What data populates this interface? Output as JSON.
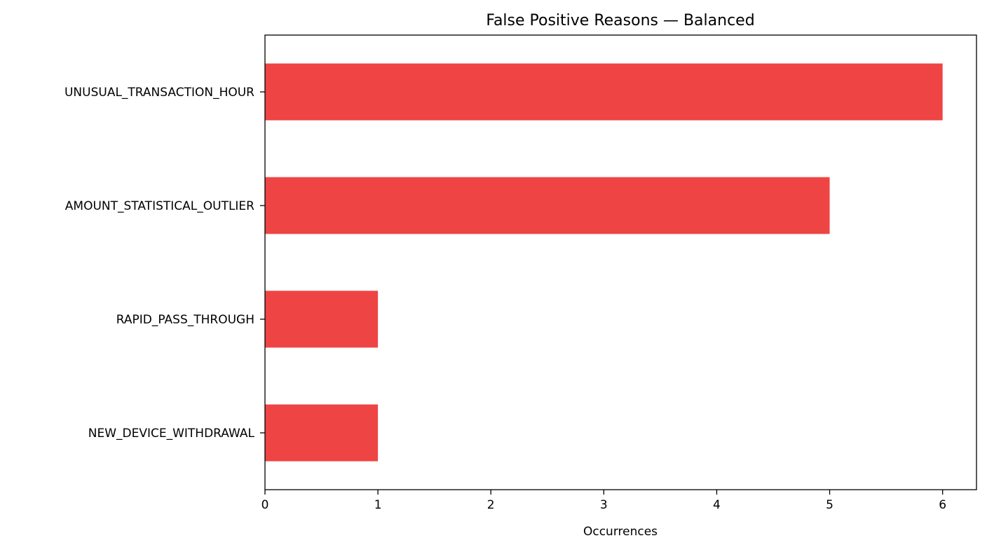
{
  "chart_data": {
    "type": "bar",
    "orientation": "horizontal",
    "title": "False Positive Reasons — Balanced",
    "xlabel": "Occurrences",
    "ylabel": "",
    "categories": [
      "NEW_DEVICE_WITHDRAWAL",
      "RAPID_PASS_THROUGH",
      "AMOUNT_STATISTICAL_OUTLIER",
      "UNUSUAL_TRANSACTION_HOUR"
    ],
    "values": [
      1,
      1,
      5,
      6
    ],
    "xlim": [
      0,
      6.3
    ],
    "xticks": [
      0,
      1,
      2,
      3,
      4,
      5,
      6
    ],
    "grid": false,
    "legend": "none",
    "bar_color": "#ef4444"
  }
}
